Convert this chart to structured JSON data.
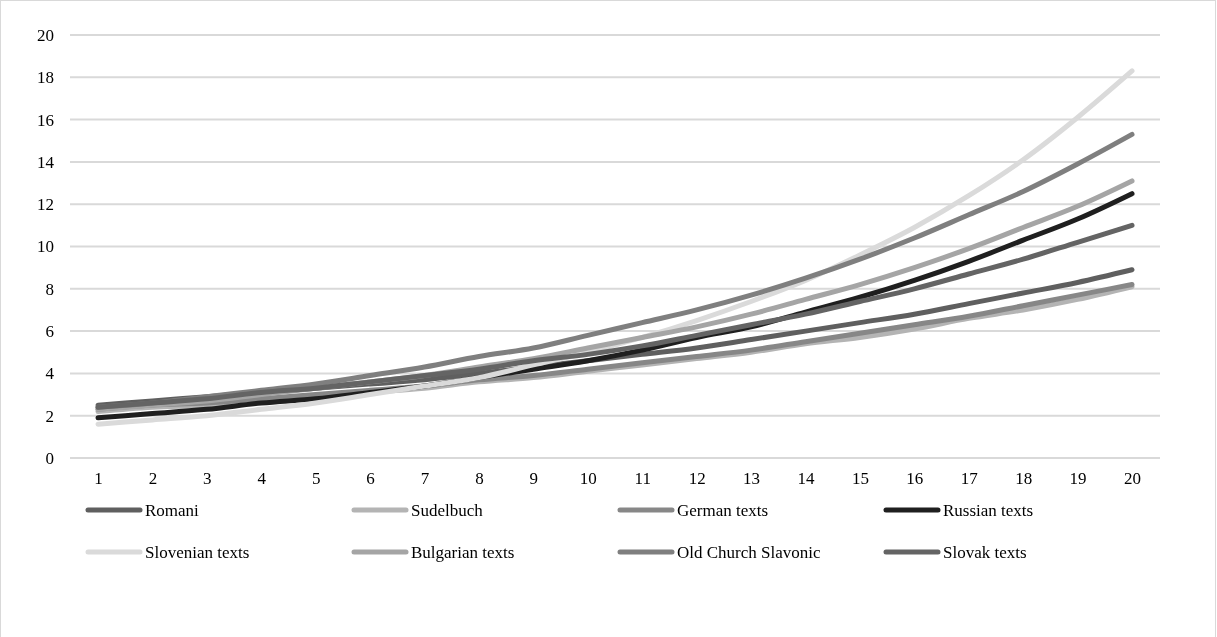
{
  "chart_data": {
    "type": "line",
    "categories": [
      "1",
      "2",
      "3",
      "4",
      "5",
      "6",
      "7",
      "8",
      "9",
      "10",
      "11",
      "12",
      "13",
      "14",
      "15",
      "16",
      "17",
      "18",
      "19",
      "20"
    ],
    "ylim": [
      0,
      20
    ],
    "yticks": [
      0,
      2,
      4,
      6,
      8,
      10,
      12,
      14,
      16,
      18,
      20
    ],
    "grid": "y",
    "legend": "bottom",
    "marker": "none",
    "line_style": "solid",
    "series": [
      {
        "name": "Romani",
        "color": "#5f5f5f",
        "values": [
          2.5,
          2.7,
          2.9,
          3.1,
          3.3,
          3.5,
          3.7,
          4.0,
          4.3,
          4.6,
          4.9,
          5.2,
          5.6,
          6.0,
          6.4,
          6.8,
          7.3,
          7.8,
          8.3,
          8.9
        ]
      },
      {
        "name": "Sudelbuch",
        "color": "#b4b4b4",
        "values": [
          2.2,
          2.4,
          2.5,
          2.7,
          2.9,
          3.1,
          3.3,
          3.6,
          3.8,
          4.1,
          4.4,
          4.7,
          5.0,
          5.4,
          5.7,
          6.1,
          6.6,
          7.0,
          7.5,
          8.1
        ]
      },
      {
        "name": "German texts",
        "color": "#878787",
        "values": [
          2.3,
          2.5,
          2.6,
          2.8,
          3.0,
          3.2,
          3.4,
          3.7,
          3.9,
          4.2,
          4.5,
          4.8,
          5.1,
          5.5,
          5.9,
          6.3,
          6.7,
          7.2,
          7.7,
          8.2
        ]
      },
      {
        "name": "Russian texts",
        "color": "#1f1f1f",
        "values": [
          1.9,
          2.1,
          2.3,
          2.6,
          2.8,
          3.1,
          3.4,
          3.8,
          4.2,
          4.6,
          5.1,
          5.7,
          6.2,
          6.9,
          7.6,
          8.4,
          9.3,
          10.3,
          11.3,
          12.5
        ]
      },
      {
        "name": "Slovenian texts",
        "color": "#dadada",
        "values": [
          1.6,
          1.8,
          2.0,
          2.3,
          2.6,
          3.0,
          3.4,
          3.8,
          4.4,
          5.0,
          5.7,
          6.5,
          7.4,
          8.4,
          9.6,
          10.9,
          12.4,
          14.1,
          16.1,
          18.3
        ]
      },
      {
        "name": "Bulgarian texts",
        "color": "#a5a5a5",
        "values": [
          2.3,
          2.5,
          2.7,
          3.0,
          3.3,
          3.6,
          3.9,
          4.3,
          4.7,
          5.2,
          5.7,
          6.2,
          6.8,
          7.5,
          8.2,
          9.0,
          9.9,
          10.9,
          11.9,
          13.1
        ]
      },
      {
        "name": "Old Church Slavonic",
        "color": "#7f7f7f",
        "values": [
          2.4,
          2.6,
          2.9,
          3.2,
          3.5,
          3.9,
          4.3,
          4.8,
          5.2,
          5.8,
          6.4,
          7.0,
          7.7,
          8.5,
          9.4,
          10.4,
          11.5,
          12.6,
          13.9,
          15.3
        ]
      },
      {
        "name": "Slovak texts",
        "color": "#646464",
        "values": [
          2.4,
          2.6,
          2.8,
          3.1,
          3.3,
          3.6,
          3.9,
          4.2,
          4.6,
          4.9,
          5.3,
          5.8,
          6.3,
          6.8,
          7.4,
          8.0,
          8.7,
          9.4,
          10.2,
          11.0
        ]
      }
    ]
  }
}
